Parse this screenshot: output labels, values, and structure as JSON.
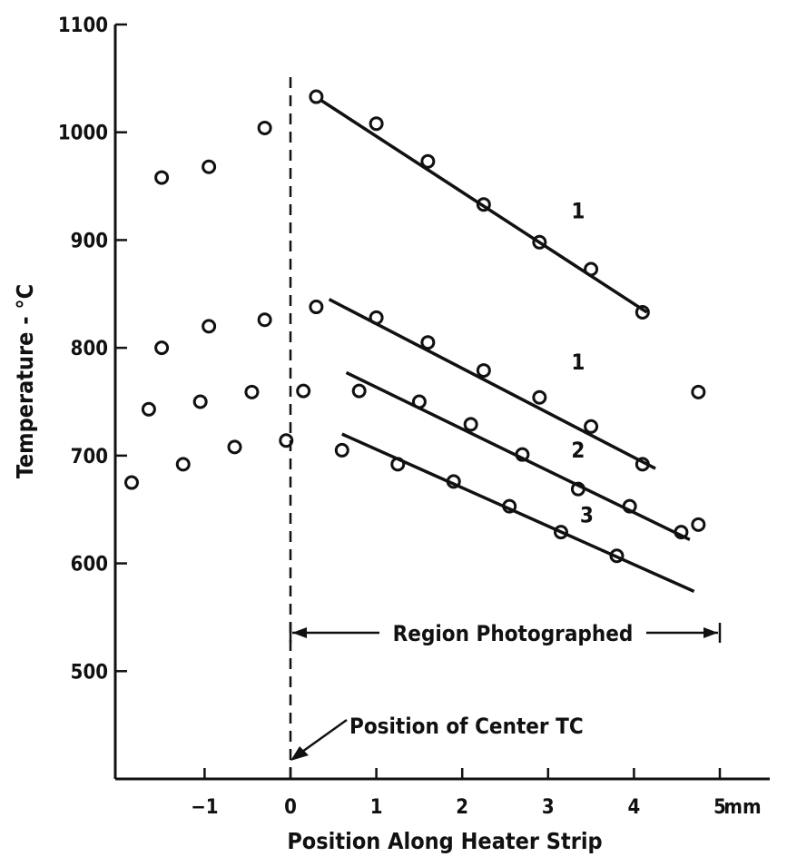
{
  "chart_data": {
    "type": "scatter",
    "title": "",
    "xlabel": "Position Along Heater Strip",
    "ylabel": "Temperature - °C",
    "x_unit": "mm",
    "xlim": [
      -2,
      5.5
    ],
    "ylim": [
      400,
      1100
    ],
    "x_ticks": [
      -1,
      0,
      1,
      2,
      3,
      4,
      5
    ],
    "y_ticks": [
      500,
      600,
      700,
      800,
      900,
      1000,
      1100
    ],
    "grid": false,
    "legend": "none",
    "series": [
      {
        "label": "1",
        "points": [
          [
            0.3,
            1033
          ],
          [
            1.0,
            1008
          ],
          [
            1.6,
            973
          ],
          [
            2.25,
            933
          ],
          [
            2.9,
            898
          ],
          [
            3.5,
            873
          ],
          [
            4.1,
            833
          ]
        ],
        "fit": [
          [
            0.35,
            1030
          ],
          [
            4.15,
            833
          ]
        ]
      },
      {
        "label": "1",
        "points": [
          [
            0.3,
            838
          ],
          [
            1.0,
            828
          ],
          [
            1.6,
            805
          ],
          [
            2.25,
            779
          ],
          [
            2.9,
            754
          ],
          [
            3.5,
            727
          ],
          [
            4.1,
            692
          ]
        ],
        "fit": [
          [
            0.45,
            845
          ],
          [
            4.25,
            688
          ]
        ]
      },
      {
        "label": "2",
        "points": [
          [
            0.8,
            760
          ],
          [
            1.5,
            750
          ],
          [
            2.1,
            729
          ],
          [
            2.7,
            701
          ],
          [
            3.35,
            669
          ],
          [
            3.95,
            653
          ],
          [
            4.55,
            629
          ],
          [
            4.75,
            636
          ]
        ],
        "fit": [
          [
            0.65,
            777
          ],
          [
            4.65,
            622
          ]
        ]
      },
      {
        "label": "3",
        "points": [
          [
            0.6,
            705
          ],
          [
            1.25,
            692
          ],
          [
            1.9,
            676
          ],
          [
            2.55,
            653
          ],
          [
            3.15,
            629
          ],
          [
            3.8,
            607
          ]
        ],
        "fit": [
          [
            0.6,
            720
          ],
          [
            4.7,
            574
          ]
        ]
      },
      {
        "label": "",
        "points": [
          [
            -1.5,
            958
          ],
          [
            -0.95,
            968
          ],
          [
            -0.3,
            1004
          ],
          [
            -1.5,
            800
          ],
          [
            -0.95,
            820
          ],
          [
            -0.3,
            826
          ],
          [
            -1.65,
            743
          ],
          [
            -1.05,
            750
          ],
          [
            -0.45,
            759
          ],
          [
            0.15,
            760
          ],
          [
            -1.85,
            675
          ],
          [
            -1.25,
            692
          ],
          [
            -0.65,
            708
          ],
          [
            -0.05,
            714
          ],
          [
            4.75,
            759
          ]
        ]
      }
    ],
    "annotations": {
      "region": "Region Photographed",
      "region_range": [
        0,
        5
      ],
      "center_tc": "Position of Center TC",
      "center_tc_x": 0
    }
  }
}
